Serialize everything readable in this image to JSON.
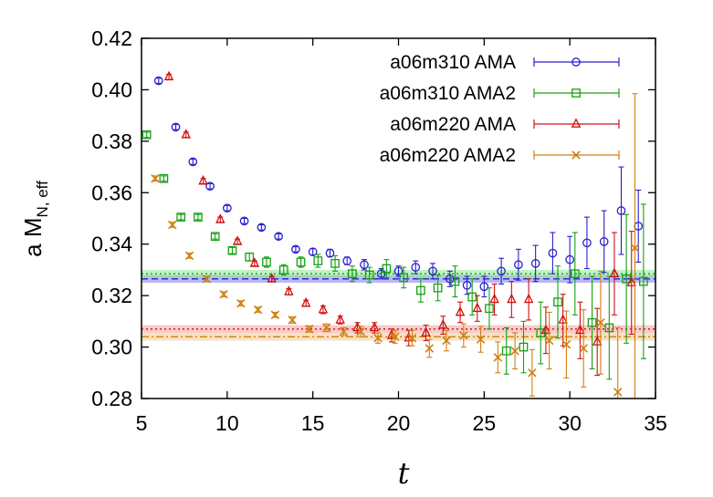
{
  "chart_data": {
    "type": "scatter",
    "xlabel": "t",
    "ylabel_main": "a M",
    "ylabel_sub": "N, eff",
    "xlim": [
      5,
      35
    ],
    "ylim": [
      0.28,
      0.42
    ],
    "xticks": [
      5,
      10,
      15,
      20,
      25,
      30,
      35
    ],
    "yticks": [
      "0.28",
      "0.30",
      "0.32",
      "0.34",
      "0.36",
      "0.38",
      "0.40",
      "0.42"
    ],
    "grid": false,
    "legend_position": "top-right",
    "series": [
      {
        "name": "a06m310 AMA",
        "color": "#2a1fd0",
        "marker": "circle",
        "fit": {
          "value": 0.3265,
          "err": 0.0015,
          "line": "dashed",
          "band_color": "#8080e8"
        },
        "points": [
          {
            "x": 6,
            "y": 0.4035,
            "e": 0.001
          },
          {
            "x": 7,
            "y": 0.3855,
            "e": 0.001
          },
          {
            "x": 8,
            "y": 0.372,
            "e": 0.001
          },
          {
            "x": 9,
            "y": 0.3625,
            "e": 0.001
          },
          {
            "x": 10,
            "y": 0.354,
            "e": 0.001
          },
          {
            "x": 11,
            "y": 0.349,
            "e": 0.001
          },
          {
            "x": 12,
            "y": 0.3465,
            "e": 0.001
          },
          {
            "x": 13,
            "y": 0.343,
            "e": 0.001
          },
          {
            "x": 14,
            "y": 0.338,
            "e": 0.001
          },
          {
            "x": 15,
            "y": 0.337,
            "e": 0.0012
          },
          {
            "x": 16,
            "y": 0.3365,
            "e": 0.0015
          },
          {
            "x": 17,
            "y": 0.3335,
            "e": 0.0015
          },
          {
            "x": 18,
            "y": 0.332,
            "e": 0.002
          },
          {
            "x": 19,
            "y": 0.3285,
            "e": 0.002
          },
          {
            "x": 20,
            "y": 0.3295,
            "e": 0.002
          },
          {
            "x": 21,
            "y": 0.331,
            "e": 0.0025
          },
          {
            "x": 22,
            "y": 0.3295,
            "e": 0.003
          },
          {
            "x": 23,
            "y": 0.3265,
            "e": 0.003
          },
          {
            "x": 24,
            "y": 0.324,
            "e": 0.0035
          },
          {
            "x": 25,
            "y": 0.3235,
            "e": 0.004
          },
          {
            "x": 26,
            "y": 0.3295,
            "e": 0.005
          },
          {
            "x": 27,
            "y": 0.332,
            "e": 0.006
          },
          {
            "x": 28,
            "y": 0.3325,
            "e": 0.007
          },
          {
            "x": 29,
            "y": 0.3365,
            "e": 0.008
          },
          {
            "x": 30,
            "y": 0.334,
            "e": 0.009
          },
          {
            "x": 31,
            "y": 0.3405,
            "e": 0.01
          },
          {
            "x": 32,
            "y": 0.341,
            "e": 0.012
          },
          {
            "x": 33,
            "y": 0.353,
            "e": 0.017
          },
          {
            "x": 34,
            "y": 0.347,
            "e": 0.014
          }
        ]
      },
      {
        "name": "a06m310 AMA2",
        "color": "#14a014",
        "marker": "square",
        "fit": {
          "value": 0.3285,
          "err": 0.0015,
          "line": "dotted",
          "band_color": "#90e890"
        },
        "points": [
          {
            "x": 5.3,
            "y": 0.3825,
            "e": 0.001
          },
          {
            "x": 6.3,
            "y": 0.3655,
            "e": 0.001
          },
          {
            "x": 7.3,
            "y": 0.3505,
            "e": 0.001
          },
          {
            "x": 8.3,
            "y": 0.3505,
            "e": 0.001
          },
          {
            "x": 9.3,
            "y": 0.343,
            "e": 0.001
          },
          {
            "x": 10.3,
            "y": 0.3375,
            "e": 0.0012
          },
          {
            "x": 11.3,
            "y": 0.335,
            "e": 0.0015
          },
          {
            "x": 12.3,
            "y": 0.333,
            "e": 0.002
          },
          {
            "x": 13.3,
            "y": 0.33,
            "e": 0.002
          },
          {
            "x": 14.3,
            "y": 0.333,
            "e": 0.002
          },
          {
            "x": 15.3,
            "y": 0.3335,
            "e": 0.0025
          },
          {
            "x": 16.3,
            "y": 0.3325,
            "e": 0.003
          },
          {
            "x": 17.3,
            "y": 0.3285,
            "e": 0.003
          },
          {
            "x": 18.3,
            "y": 0.328,
            "e": 0.003
          },
          {
            "x": 19.3,
            "y": 0.3305,
            "e": 0.0035
          },
          {
            "x": 20.3,
            "y": 0.327,
            "e": 0.004
          },
          {
            "x": 21.3,
            "y": 0.322,
            "e": 0.0045
          },
          {
            "x": 22.3,
            "y": 0.323,
            "e": 0.005
          },
          {
            "x": 23.3,
            "y": 0.3255,
            "e": 0.006
          },
          {
            "x": 24.3,
            "y": 0.3195,
            "e": 0.007
          },
          {
            "x": 25.3,
            "y": 0.315,
            "e": 0.008
          },
          {
            "x": 26.3,
            "y": 0.2985,
            "e": 0.009
          },
          {
            "x": 27.3,
            "y": 0.3,
            "e": 0.01
          },
          {
            "x": 28.3,
            "y": 0.3055,
            "e": 0.012
          },
          {
            "x": 29.3,
            "y": 0.3175,
            "e": 0.014
          },
          {
            "x": 30.3,
            "y": 0.3285,
            "e": 0.016
          },
          {
            "x": 31.3,
            "y": 0.3095,
            "e": 0.018
          },
          {
            "x": 32.3,
            "y": 0.3075,
            "e": 0.02
          },
          {
            "x": 33.3,
            "y": 0.3265,
            "e": 0.025
          },
          {
            "x": 34.3,
            "y": 0.3255,
            "e": 0.03
          }
        ]
      },
      {
        "name": "a06m220 AMA",
        "color": "#d01010",
        "marker": "triangle",
        "fit": {
          "value": 0.307,
          "err": 0.0015,
          "line": "dotted",
          "band_color": "#f2a0a0"
        },
        "points": [
          {
            "x": 6.6,
            "y": 0.405,
            "e": 0.001
          },
          {
            "x": 7.6,
            "y": 0.3825,
            "e": 0.001
          },
          {
            "x": 8.6,
            "y": 0.3645,
            "e": 0.001
          },
          {
            "x": 9.6,
            "y": 0.3495,
            "e": 0.001
          },
          {
            "x": 10.6,
            "y": 0.341,
            "e": 0.001
          },
          {
            "x": 11.6,
            "y": 0.3325,
            "e": 0.001
          },
          {
            "x": 12.6,
            "y": 0.3265,
            "e": 0.001
          },
          {
            "x": 13.6,
            "y": 0.3215,
            "e": 0.0012
          },
          {
            "x": 14.6,
            "y": 0.317,
            "e": 0.0012
          },
          {
            "x": 15.6,
            "y": 0.3145,
            "e": 0.0015
          },
          {
            "x": 16.6,
            "y": 0.3105,
            "e": 0.0015
          },
          {
            "x": 17.6,
            "y": 0.3075,
            "e": 0.002
          },
          {
            "x": 18.6,
            "y": 0.3075,
            "e": 0.002
          },
          {
            "x": 19.6,
            "y": 0.3045,
            "e": 0.0025
          },
          {
            "x": 20.6,
            "y": 0.3035,
            "e": 0.003
          },
          {
            "x": 21.6,
            "y": 0.3055,
            "e": 0.003
          },
          {
            "x": 22.6,
            "y": 0.3085,
            "e": 0.0035
          },
          {
            "x": 23.6,
            "y": 0.3135,
            "e": 0.004
          },
          {
            "x": 24.6,
            "y": 0.315,
            "e": 0.005
          },
          {
            "x": 25.6,
            "y": 0.3185,
            "e": 0.006
          },
          {
            "x": 26.6,
            "y": 0.3185,
            "e": 0.007
          },
          {
            "x": 27.6,
            "y": 0.3185,
            "e": 0.008
          },
          {
            "x": 28.6,
            "y": 0.3065,
            "e": 0.009
          },
          {
            "x": 29.6,
            "y": 0.3105,
            "e": 0.01
          },
          {
            "x": 30.6,
            "y": 0.3065,
            "e": 0.011
          },
          {
            "x": 31.6,
            "y": 0.302,
            "e": 0.013
          },
          {
            "x": 32.6,
            "y": 0.3285,
            "e": 0.016
          },
          {
            "x": 33.6,
            "y": 0.325,
            "e": 0.02
          }
        ]
      },
      {
        "name": "a06m220 AMA2",
        "color": "#d08010",
        "marker": "x",
        "fit": {
          "value": 0.304,
          "err": 0.0015,
          "line": "dashdot",
          "band_color": "#f0c890"
        },
        "points": [
          {
            "x": 5.8,
            "y": 0.3655,
            "e": 0.001
          },
          {
            "x": 6.8,
            "y": 0.3475,
            "e": 0.001
          },
          {
            "x": 7.8,
            "y": 0.3355,
            "e": 0.001
          },
          {
            "x": 8.8,
            "y": 0.3265,
            "e": 0.001
          },
          {
            "x": 9.8,
            "y": 0.3205,
            "e": 0.001
          },
          {
            "x": 10.8,
            "y": 0.317,
            "e": 0.001
          },
          {
            "x": 11.8,
            "y": 0.3145,
            "e": 0.001
          },
          {
            "x": 12.8,
            "y": 0.3125,
            "e": 0.001
          },
          {
            "x": 13.8,
            "y": 0.3105,
            "e": 0.0012
          },
          {
            "x": 14.8,
            "y": 0.307,
            "e": 0.0012
          },
          {
            "x": 15.8,
            "y": 0.3075,
            "e": 0.0015
          },
          {
            "x": 16.8,
            "y": 0.306,
            "e": 0.0015
          },
          {
            "x": 17.8,
            "y": 0.306,
            "e": 0.002
          },
          {
            "x": 18.8,
            "y": 0.3035,
            "e": 0.002
          },
          {
            "x": 19.8,
            "y": 0.304,
            "e": 0.0025
          },
          {
            "x": 20.8,
            "y": 0.3035,
            "e": 0.003
          },
          {
            "x": 21.8,
            "y": 0.2995,
            "e": 0.0035
          },
          {
            "x": 22.8,
            "y": 0.3025,
            "e": 0.004
          },
          {
            "x": 23.8,
            "y": 0.3045,
            "e": 0.0045
          },
          {
            "x": 24.8,
            "y": 0.303,
            "e": 0.005
          },
          {
            "x": 25.8,
            "y": 0.296,
            "e": 0.006
          },
          {
            "x": 26.8,
            "y": 0.2985,
            "e": 0.007
          },
          {
            "x": 27.8,
            "y": 0.29,
            "e": 0.009
          },
          {
            "x": 28.8,
            "y": 0.3025,
            "e": 0.011
          },
          {
            "x": 29.8,
            "y": 0.301,
            "e": 0.013
          },
          {
            "x": 30.8,
            "y": 0.2995,
            "e": 0.015
          },
          {
            "x": 31.8,
            "y": 0.3095,
            "e": 0.02
          },
          {
            "x": 32.8,
            "y": 0.2825,
            "e": 0.025
          },
          {
            "x": 33.8,
            "y": 0.3385,
            "e": 0.06
          }
        ]
      }
    ]
  }
}
